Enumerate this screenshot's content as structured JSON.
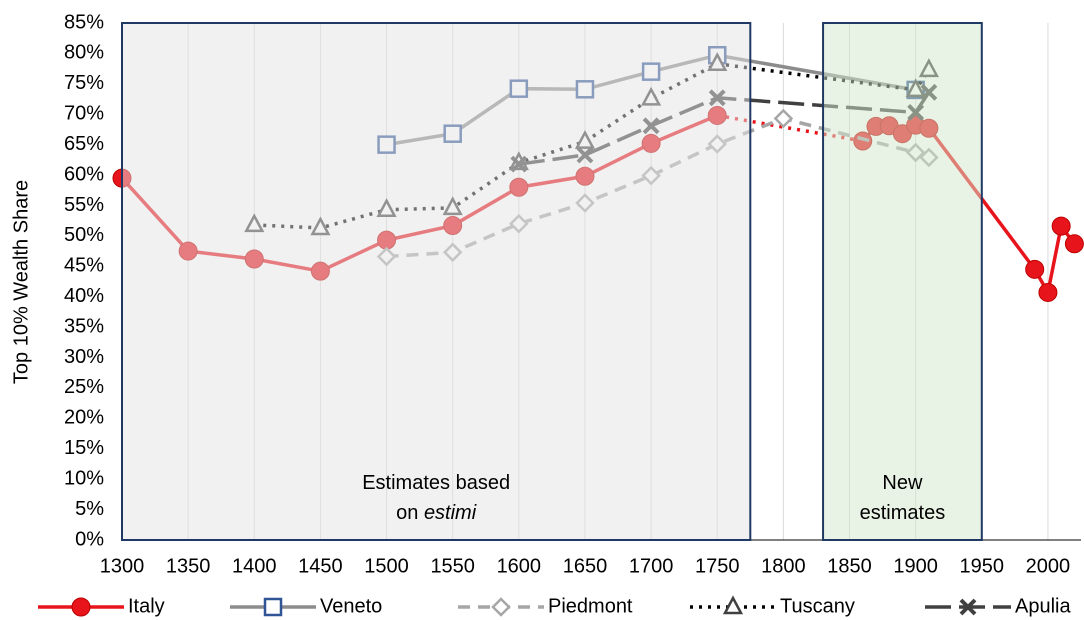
{
  "chart_data": {
    "type": "line",
    "y_label": "Top 10% Wealth Share",
    "xlim": [
      1300,
      2025
    ],
    "xticks": [
      1300,
      1350,
      1400,
      1450,
      1500,
      1550,
      1600,
      1650,
      1700,
      1750,
      1800,
      1850,
      1900,
      1950,
      2000
    ],
    "ylim": [
      0,
      85
    ],
    "yticks": [
      {
        "value": 0,
        "label": "0%"
      },
      {
        "value": 5,
        "label": "5%"
      },
      {
        "value": 10,
        "label": "10%"
      },
      {
        "value": 15,
        "label": "15%"
      },
      {
        "value": 20,
        "label": "20%"
      },
      {
        "value": 25,
        "label": "25%"
      },
      {
        "value": 30,
        "label": "30%"
      },
      {
        "value": 35,
        "label": "35%"
      },
      {
        "value": 40,
        "label": "40%"
      },
      {
        "value": 45,
        "label": "45%"
      },
      {
        "value": 50,
        "label": "50%"
      },
      {
        "value": 55,
        "label": "55%"
      },
      {
        "value": 60,
        "label": "60%"
      },
      {
        "value": 65,
        "label": "65%"
      },
      {
        "value": 70,
        "label": "70%"
      },
      {
        "value": 75,
        "label": "75%"
      },
      {
        "value": 80,
        "label": "80%"
      },
      {
        "value": 85,
        "label": "85%"
      }
    ],
    "grid": "x",
    "legend": "bottom",
    "regions": [
      {
        "x0": 1300,
        "x1": 1775,
        "fill": "#e4e4e4",
        "label_lines": [
          [
            {
              "text": "Estimates based",
              "italic": false
            }
          ],
          [
            {
              "text": "on ",
              "italic": false
            },
            {
              "text": "estimi",
              "italic": true
            }
          ]
        ]
      },
      {
        "x0": 1830,
        "x1": 1950,
        "fill": "#d3e8cc",
        "label_lines": [
          [
            {
              "text": "New",
              "italic": false
            }
          ],
          [
            {
              "text": "estimates",
              "italic": false
            }
          ]
        ]
      }
    ],
    "series": [
      {
        "name": "Italy",
        "color": "#e8141c",
        "marker": "circle",
        "marker_color": "#e8141c",
        "dash": "solid",
        "dotted_segments": [
          9
        ],
        "x": [
          1300,
          1350,
          1400,
          1450,
          1500,
          1550,
          1600,
          1650,
          1700,
          1750,
          1860,
          1870,
          1880,
          1890,
          1900,
          1910,
          1990,
          2000,
          2010,
          2020
        ],
        "values": [
          59.5,
          47.5,
          46.2,
          44.2,
          49.3,
          51.7,
          58,
          59.8,
          65.2,
          69.8,
          65.6,
          68,
          68.1,
          66.8,
          68.2,
          67.7,
          44.5,
          40.7,
          51.6,
          48.7
        ]
      },
      {
        "name": "Veneto",
        "color": "#8c8c8c",
        "marker": "square",
        "marker_color": "#2f5597",
        "dash": "solid",
        "x": [
          1500,
          1550,
          1600,
          1650,
          1700,
          1750,
          1900
        ],
        "values": [
          65,
          66.8,
          74.2,
          74.1,
          77,
          79.7,
          74
        ]
      },
      {
        "name": "Piedmont",
        "color": "#a6a6a6",
        "marker": "diamond",
        "marker_color": "#a6a6a6",
        "dash": "dashed",
        "x": [
          1500,
          1550,
          1600,
          1650,
          1700,
          1750,
          1800,
          1900,
          1910
        ],
        "values": [
          46.6,
          47.3,
          52,
          55.4,
          59.9,
          65.1,
          69.3,
          63.7,
          62.9
        ]
      },
      {
        "name": "Tuscany",
        "color": "#000000",
        "marker": "triangle",
        "marker_color": "#404040",
        "dash": "dotted",
        "x": [
          1400,
          1450,
          1500,
          1550,
          1600,
          1650,
          1700,
          1750,
          1900,
          1910
        ],
        "values": [
          51.8,
          51.3,
          54.3,
          54.6,
          62,
          65.5,
          72.6,
          78.3,
          74,
          77.3
        ]
      },
      {
        "name": "Apulia",
        "color": "#404040",
        "marker": "x",
        "marker_color": "#404040",
        "dash": "longdash",
        "x": [
          1600,
          1650,
          1700,
          1750,
          1900,
          1910
        ],
        "values": [
          61.8,
          63.3,
          68.1,
          72.7,
          70.3,
          73.6
        ]
      }
    ]
  }
}
